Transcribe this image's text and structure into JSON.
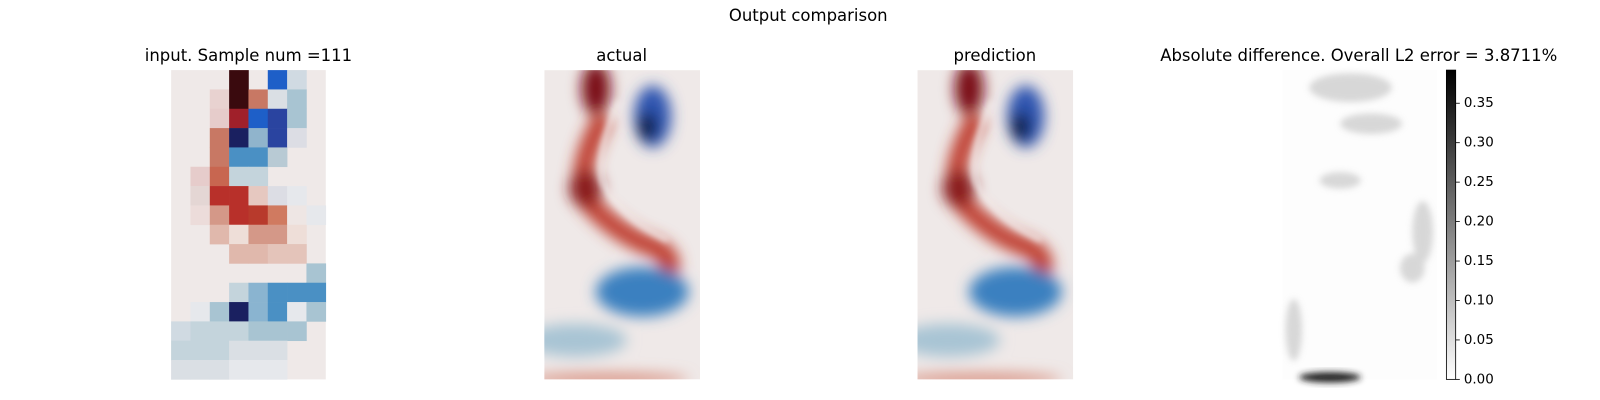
{
  "chart_data": {
    "type": "image-comparison",
    "title": "Output comparison",
    "panels": [
      "input. Sample num =111",
      "actual",
      "prediction",
      "Absolute difference. Overall L2 error = 3.8711%"
    ],
    "colorbar": {
      "colormap": "gray_r",
      "ylim": [
        0,
        0.392
      ],
      "yticks": [
        {
          "value": 0,
          "label": "0.00"
        },
        {
          "value": 0.05,
          "label": "0.05"
        },
        {
          "value": 0.1,
          "label": "0.10"
        },
        {
          "value": 0.15,
          "label": "0.15"
        },
        {
          "value": 0.2,
          "label": "0.20"
        },
        {
          "value": 0.25,
          "label": "0.25"
        },
        {
          "value": 0.3,
          "label": "0.30"
        },
        {
          "value": 0.35,
          "label": "0.35"
        }
      ]
    }
  }
}
